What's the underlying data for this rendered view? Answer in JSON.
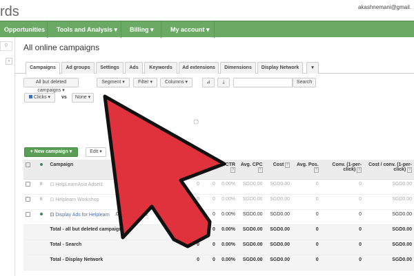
{
  "header": {
    "logo_text": "rds",
    "email": "akashnemani@gmail."
  },
  "nav": {
    "items": [
      "Opportunities",
      "Tools and Analysis ▾",
      "Billing ▾",
      "My account ▾"
    ]
  },
  "page": {
    "title": "All online campaigns"
  },
  "tabs": [
    "Campaigns",
    "Ad groups",
    "Settings",
    "Ads",
    "Keywords",
    "Ad extensions",
    "Dimensions",
    "Display Network",
    "▾"
  ],
  "toolbar": {
    "filter_select": "All but deleted campaigns ▾",
    "segment": "Segment ▾",
    "filter": "Filter ▾",
    "columns": "Columns ▾",
    "chart_icon": "chart-icon",
    "download_icon": "download-icon",
    "search_value": "",
    "search_label": "Search"
  },
  "chart_controls": {
    "metric1": "Clicks ▾",
    "vs": "vs",
    "metric2": "None ▾",
    "metric1_color": "#3b6fb6"
  },
  "actions": {
    "new_campaign": "+ New campaign ▾",
    "edit": "Edit ▾"
  },
  "table": {
    "headers": [
      "Campaign",
      "CTR",
      "Avg. CPC",
      "Cost",
      "Avg. Pos.",
      "Conv. (1-per-click)",
      "Cost / conv. (1-per-click)"
    ],
    "rows": [
      {
        "status": "paused",
        "name": "HelpLearnAsia Adset1",
        "budget": "",
        "type": "",
        "c1": "0",
        "c2": "0",
        "ctr": "0.00%",
        "cpc": "SGD0.00",
        "cost": "SGD0.00",
        "pos": "0",
        "conv": "0",
        "cpconv": "SGD0.00"
      },
      {
        "status": "paused",
        "name": "Helplearn Workshop",
        "budget": "",
        "type": "",
        "c1": "0",
        "c2": "0",
        "ctr": "0.00%",
        "cpc": "SGD0.00",
        "cost": "SGD0.00",
        "pos": "0",
        "conv": "0",
        "cpconv": "SGD0.00"
      },
      {
        "status": "enabled",
        "name": "Display Ads for Helplearn",
        "budget": ".00/day",
        "type": "E",
        "c1": "",
        "c2": "0",
        "ctr": "0.00%",
        "cpc": "SGD0.00",
        "cost": "SGD0.00",
        "pos": "0",
        "conv": "0",
        "cpconv": "SGD0.00"
      }
    ],
    "totals": [
      {
        "name": "Total - all but deleted campaigns",
        "c1": "",
        "c2": "0",
        "ctr": "0.00%",
        "cpc": "SGD0.00",
        "cost": "SGD0.00",
        "pos": "0",
        "conv": "0",
        "cpconv": "SGD0.00"
      },
      {
        "name": "Total - Search",
        "c1": "0",
        "c2": "0",
        "ctr": "0.00%",
        "cpc": "SGD0.00",
        "cost": "SGD0.00",
        "pos": "0",
        "conv": "0",
        "cpconv": "SGD0.00"
      },
      {
        "name": "Total - Display Network",
        "c1": "0",
        "c2": "0",
        "ctr": "0.00%",
        "cpc": "SGD0.00",
        "cost": "SGD0.00",
        "pos": "0",
        "conv": "0",
        "cpconv": "SGD0.00"
      }
    ]
  },
  "overlay": {
    "arrow_color": "#e0323c"
  }
}
